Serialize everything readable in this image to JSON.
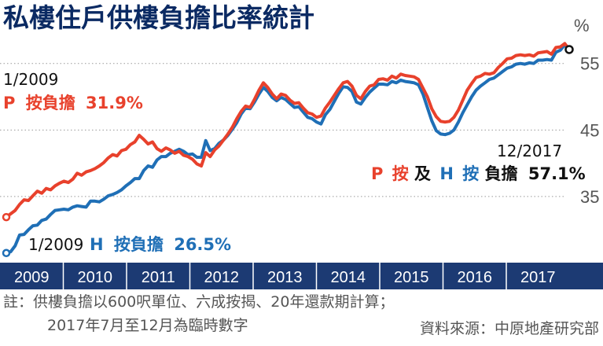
{
  "chart_data": {
    "type": "line",
    "title": "私樓住戶供樓負擔比率統計",
    "unit_label": "%",
    "y_ticks": [
      {
        "value": 55,
        "label": "55"
      },
      {
        "value": 45,
        "label": "45"
      },
      {
        "value": 35,
        "label": "35"
      }
    ],
    "ylim": [
      26,
      61
    ],
    "x_ticks": [
      "2009",
      "2010",
      "2011",
      "2012",
      "2013",
      "2014",
      "2015",
      "2016",
      "2017"
    ],
    "series": [
      {
        "name": "P",
        "color": "#e8412c",
        "values": [
          31.9,
          32.4,
          32.9,
          33.8,
          34.5,
          34.4,
          35.1,
          35.8,
          35.5,
          36.2,
          36.0,
          36.6,
          37.0,
          37.3,
          37.1,
          37.6,
          38.5,
          38.2,
          38.7,
          38.9,
          39.2,
          39.6,
          40.1,
          40.8,
          41.3,
          41.1,
          41.9,
          42.1,
          42.8,
          43.2,
          44.2,
          43.6,
          42.9,
          43.2,
          42.2,
          41.8,
          42.3,
          42.0,
          41.5,
          41.8,
          41.2,
          41.0,
          40.6,
          39.9,
          39.6,
          41.6,
          41.0,
          42.0,
          42.6,
          43.5,
          44.4,
          45.4,
          46.7,
          47.8,
          48.6,
          48.4,
          49.6,
          51.0,
          52.1,
          51.4,
          50.4,
          49.7,
          50.4,
          50.2,
          49.5,
          49.0,
          49.1,
          48.3,
          47.6,
          47.4,
          46.9,
          47.1,
          48.3,
          49.2,
          50.2,
          51.2,
          52.1,
          52.3,
          51.6,
          50.2,
          49.7,
          50.8,
          51.6,
          51.8,
          52.6,
          52.7,
          52.5,
          53.1,
          52.8,
          53.4,
          53.2,
          53.1,
          53.0,
          52.6,
          51.3,
          50.0,
          48.2,
          47.0,
          46.3,
          46.2,
          46.3,
          46.9,
          48.0,
          49.5,
          51.0,
          52.0,
          52.9,
          53.1,
          53.5,
          53.4,
          53.6,
          54.4,
          55.0,
          55.7,
          55.8,
          56.2,
          56.3,
          56.2,
          56.3,
          56.1,
          56.6,
          56.7,
          56.8,
          56.4,
          57.4,
          57.5,
          58.0,
          57.1
        ]
      },
      {
        "name": "H",
        "color": "#1f6fb6",
        "values": [
          26.5,
          26.7,
          27.6,
          29.2,
          29.3,
          30.0,
          30.6,
          30.7,
          31.4,
          31.6,
          32.3,
          32.9,
          33.0,
          33.1,
          33.0,
          33.4,
          33.6,
          33.5,
          33.4,
          34.3,
          34.3,
          34.2,
          34.6,
          35.1,
          35.3,
          35.6,
          36.0,
          36.6,
          37.1,
          37.7,
          37.7,
          38.9,
          39.6,
          39.4,
          40.5,
          41.0,
          41.0,
          41.5,
          41.8,
          42.1,
          41.8,
          41.3,
          41.4,
          40.9,
          40.9,
          43.4,
          41.9,
          42.2,
          43.0,
          43.5,
          44.2,
          45.1,
          46.1,
          47.4,
          48.3,
          48.2,
          49.2,
          50.4,
          51.4,
          50.8,
          49.9,
          49.4,
          49.9,
          49.6,
          49.0,
          48.4,
          48.5,
          47.7,
          46.9,
          46.7,
          46.2,
          45.9,
          47.3,
          48.1,
          49.3,
          50.5,
          51.5,
          51.4,
          50.8,
          49.2,
          48.9,
          49.9,
          50.7,
          51.3,
          51.9,
          51.9,
          51.8,
          52.3,
          52.1,
          52.5,
          52.3,
          52.2,
          52.1,
          51.8,
          50.4,
          48.4,
          46.4,
          44.9,
          44.4,
          44.3,
          44.5,
          45.0,
          46.2,
          47.6,
          48.8,
          50.0,
          51.0,
          51.6,
          52.1,
          52.6,
          52.8,
          53.3,
          53.8,
          54.3,
          54.5,
          54.9,
          55.0,
          54.9,
          55.1,
          55.0,
          55.5,
          55.5,
          55.6,
          55.5,
          56.7,
          57.0,
          57.8,
          57.1
        ]
      }
    ],
    "annotations": {
      "p_start_date": "1/2009",
      "p_start_prefix": "P",
      "p_start_text": "按負擔",
      "p_start_value": "31.9%",
      "h_start_date": "1/2009",
      "h_start_prefix": "H",
      "h_start_text": "按負擔",
      "h_start_value": "26.5%",
      "end_date": "12/2017",
      "end_p": "P",
      "end_p_text": "按",
      "end_joiner": "及",
      "end_h": "H",
      "end_h_text": "按",
      "end_text": "負擔",
      "end_value": "57.1%"
    },
    "footnote_line1": "註：供樓負擔以600呎單位、六成按揭、20年還款期計算；",
    "footnote_line2": "2017年7月至12月為臨時數字",
    "source": "資料來源：中原地產研究部"
  },
  "colors": {
    "title": "#0b2a63",
    "p_line": "#e8412c",
    "h_line": "#1f6fb6",
    "year_band": "#1c3a73",
    "grid": "#999999"
  }
}
